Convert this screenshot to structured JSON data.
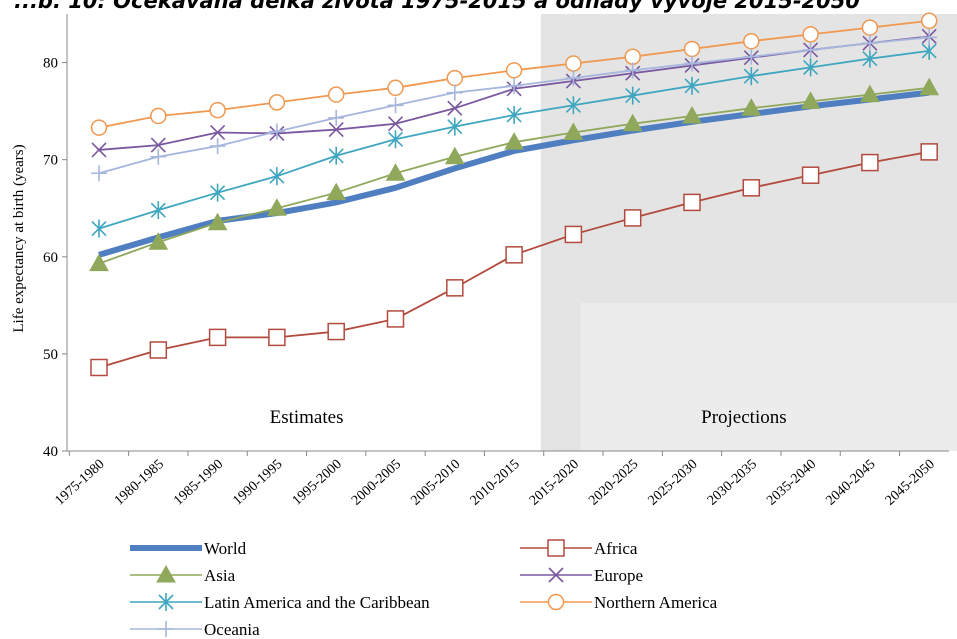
{
  "chart_data": {
    "type": "line",
    "title": "...b. 10: Očekávaná délka života 1975-2015 a odhady vývoje 2015-2050",
    "ylabel": "Life expectancy at birth (years)",
    "xlabel": "",
    "ylim": [
      40,
      85
    ],
    "yticks": [
      40,
      50,
      60,
      70,
      80
    ],
    "grid": false,
    "legend_position": "bottom",
    "categories": [
      "1975-1980",
      "1980-1985",
      "1985-1990",
      "1990-1995",
      "1995-2000",
      "2000-2005",
      "2005-2010",
      "2010-2015",
      "2015-2020",
      "2020-2025",
      "2025-2030",
      "2030-2035",
      "2035-2040",
      "2040-2045",
      "2045-2050"
    ],
    "regions": [
      {
        "label": "Estimates",
        "from": "1975-1980",
        "to": "2010-2015"
      },
      {
        "label": "Projections",
        "from": "2015-2020",
        "to": "2045-2050"
      }
    ],
    "series": [
      {
        "name": "World",
        "color": "#4f7ec1",
        "marker": "none",
        "values": [
          60.2,
          62.0,
          63.7,
          64.5,
          65.6,
          67.1,
          69.1,
          70.9,
          72.0,
          73.0,
          73.9,
          74.7,
          75.5,
          76.2,
          76.9
        ]
      },
      {
        "name": "Africa",
        "color": "#b24a3d",
        "marker": "square",
        "values": [
          48.6,
          50.4,
          51.7,
          51.7,
          52.3,
          53.6,
          56.8,
          60.2,
          62.3,
          64.0,
          65.6,
          67.1,
          68.4,
          69.7,
          70.8
        ]
      },
      {
        "name": "Asia",
        "color": "#8fa85b",
        "marker": "triangle",
        "values": [
          59.3,
          61.5,
          63.5,
          65.0,
          66.6,
          68.6,
          70.3,
          71.8,
          72.8,
          73.7,
          74.5,
          75.3,
          76.0,
          76.7,
          77.4
        ]
      },
      {
        "name": "Europe",
        "color": "#7a58a0",
        "marker": "x",
        "values": [
          71.0,
          71.5,
          72.8,
          72.7,
          73.1,
          73.7,
          75.3,
          77.3,
          78.1,
          78.9,
          79.7,
          80.5,
          81.3,
          82.0,
          82.7
        ]
      },
      {
        "name": "Latin America and the Caribbean",
        "color": "#3fa6c0",
        "marker": "asterisk",
        "values": [
          62.9,
          64.8,
          66.6,
          68.3,
          70.4,
          72.1,
          73.4,
          74.6,
          75.6,
          76.6,
          77.6,
          78.6,
          79.5,
          80.4,
          81.2
        ]
      },
      {
        "name": "Northern America",
        "color": "#f09850",
        "marker": "circle",
        "values": [
          73.3,
          74.5,
          75.1,
          75.9,
          76.7,
          77.4,
          78.4,
          79.2,
          79.9,
          80.6,
          81.4,
          82.2,
          82.9,
          83.6,
          84.3
        ]
      },
      {
        "name": "Oceania",
        "color": "#a6b6dc",
        "marker": "plus",
        "values": [
          68.6,
          70.3,
          71.4,
          72.9,
          74.3,
          75.6,
          76.9,
          77.6,
          78.4,
          79.2,
          79.9,
          80.6,
          81.3,
          82.0,
          82.6
        ]
      }
    ]
  }
}
